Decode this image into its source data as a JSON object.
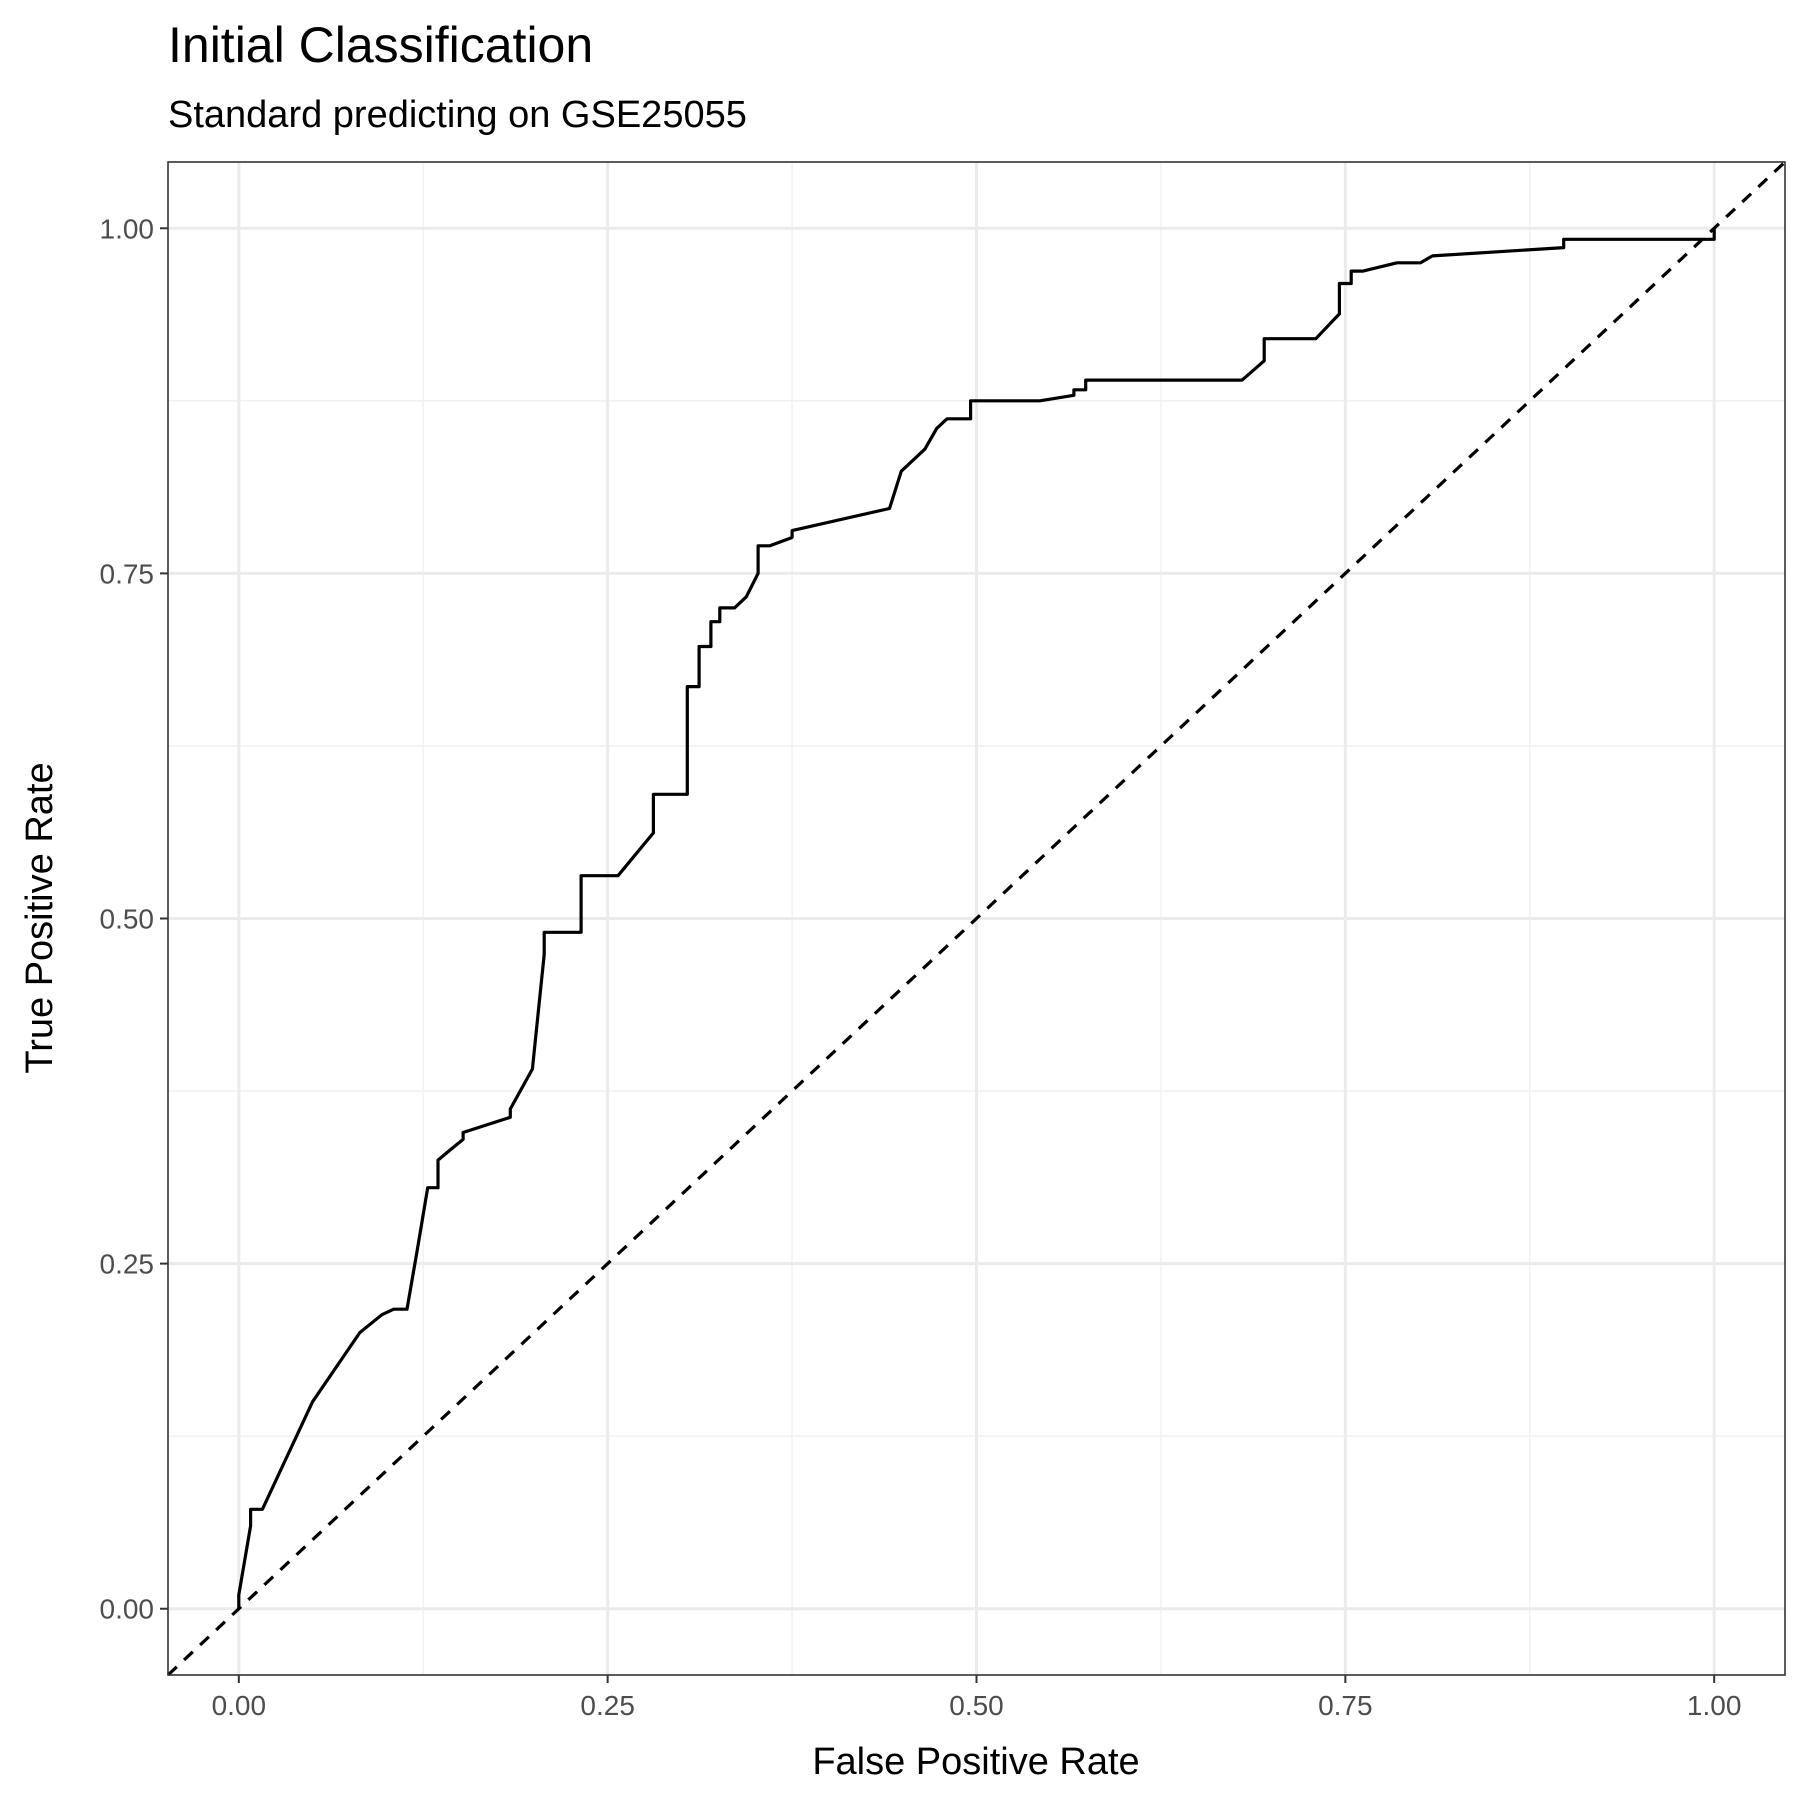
{
  "chart_data": {
    "type": "line",
    "title": "Initial Classification",
    "subtitle": "Standard predicting on GSE25055",
    "xlabel": "False Positive Rate",
    "ylabel": "True Positive Rate",
    "xlim": [
      -0.048,
      1.048
    ],
    "ylim": [
      -0.048,
      1.048
    ],
    "x_ticks": [
      0.0,
      0.25,
      0.5,
      0.75,
      1.0
    ],
    "x_tick_labels": [
      "0.00",
      "0.25",
      "0.50",
      "0.75",
      "1.00"
    ],
    "y_ticks": [
      0.0,
      0.25,
      0.5,
      0.75,
      1.0
    ],
    "y_tick_labels": [
      "0.00",
      "0.25",
      "0.50",
      "0.75",
      "1.00"
    ],
    "grid": true,
    "series": [
      {
        "style": "solid",
        "color": "#000000",
        "x": [
          0.0,
          0.0,
          0.008,
          0.008,
          0.016,
          0.05,
          0.082,
          0.097,
          0.105,
          0.114,
          0.121,
          0.128,
          0.135,
          0.135,
          0.144,
          0.152,
          0.152,
          0.184,
          0.184,
          0.199,
          0.207,
          0.207,
          0.232,
          0.232,
          0.257,
          0.281,
          0.281,
          0.304,
          0.304,
          0.312,
          0.312,
          0.32,
          0.32,
          0.326,
          0.326,
          0.336,
          0.344,
          0.352,
          0.352,
          0.36,
          0.375,
          0.375,
          0.441,
          0.449,
          0.465,
          0.473,
          0.48,
          0.496,
          0.496,
          0.543,
          0.566,
          0.566,
          0.574,
          0.574,
          0.68,
          0.695,
          0.695,
          0.73,
          0.746,
          0.746,
          0.754,
          0.754,
          0.762,
          0.785,
          0.801,
          0.809,
          0.898,
          0.898,
          1.0,
          1.0
        ],
        "y": [
          0.0,
          0.01,
          0.06,
          0.072,
          0.072,
          0.15,
          0.2,
          0.213,
          0.217,
          0.217,
          0.26,
          0.305,
          0.305,
          0.325,
          0.333,
          0.34,
          0.345,
          0.356,
          0.362,
          0.391,
          0.474,
          0.49,
          0.49,
          0.531,
          0.531,
          0.562,
          0.59,
          0.59,
          0.668,
          0.668,
          0.697,
          0.697,
          0.715,
          0.715,
          0.725,
          0.725,
          0.733,
          0.75,
          0.77,
          0.77,
          0.776,
          0.781,
          0.797,
          0.824,
          0.84,
          0.855,
          0.862,
          0.862,
          0.875,
          0.875,
          0.879,
          0.883,
          0.883,
          0.89,
          0.89,
          0.904,
          0.92,
          0.92,
          0.938,
          0.96,
          0.96,
          0.969,
          0.969,
          0.975,
          0.975,
          0.98,
          0.986,
          0.992,
          0.992,
          1.0
        ]
      },
      {
        "style": "dashed",
        "color": "#000000",
        "x": [
          -0.048,
          1.048
        ],
        "y": [
          -0.048,
          1.048
        ]
      }
    ]
  }
}
